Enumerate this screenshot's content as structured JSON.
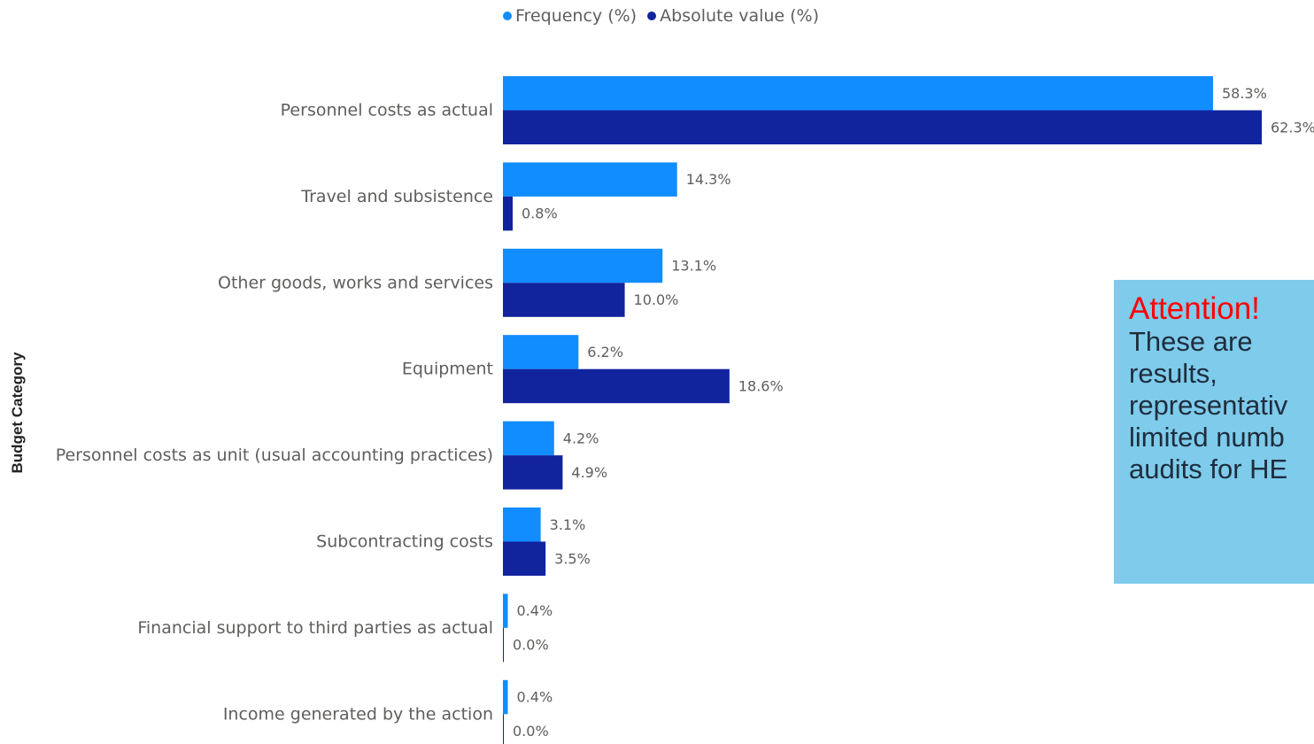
{
  "legend": {
    "frequency_label": "Frequency (%)",
    "absolute_label": "Absolute value (%)"
  },
  "colors": {
    "frequency": "#118dff",
    "absolute": "#12239e",
    "note_background": "#7ecbeb",
    "note_title": "#ff0000"
  },
  "note": {
    "title": "Attention!",
    "lines": [
      "These are",
      "results,",
      "representativ",
      "limited numb",
      "audits for HE"
    ]
  },
  "chart_data": {
    "type": "bar",
    "orientation": "horizontal",
    "ylabel": "Budget Category",
    "categories": [
      "Personnel costs as actual",
      "Travel and subsistence",
      "Other goods, works and services",
      "Equipment",
      "Personnel costs as unit (usual accounting practices)",
      "Subcontracting costs",
      "Financial support to third parties as actual",
      "Income generated by the action"
    ],
    "series": [
      {
        "name": "Frequency (%)",
        "values": [
          58.3,
          14.3,
          13.1,
          6.2,
          4.2,
          3.1,
          0.4,
          0.4
        ]
      },
      {
        "name": "Absolute value (%)",
        "values": [
          62.3,
          0.8,
          10.0,
          18.6,
          4.9,
          3.5,
          0.0,
          0.0
        ]
      }
    ],
    "xlim": [
      0,
      62.3
    ],
    "value_format": "percent, 1 decimal",
    "legend_position": "top",
    "grid": false
  }
}
